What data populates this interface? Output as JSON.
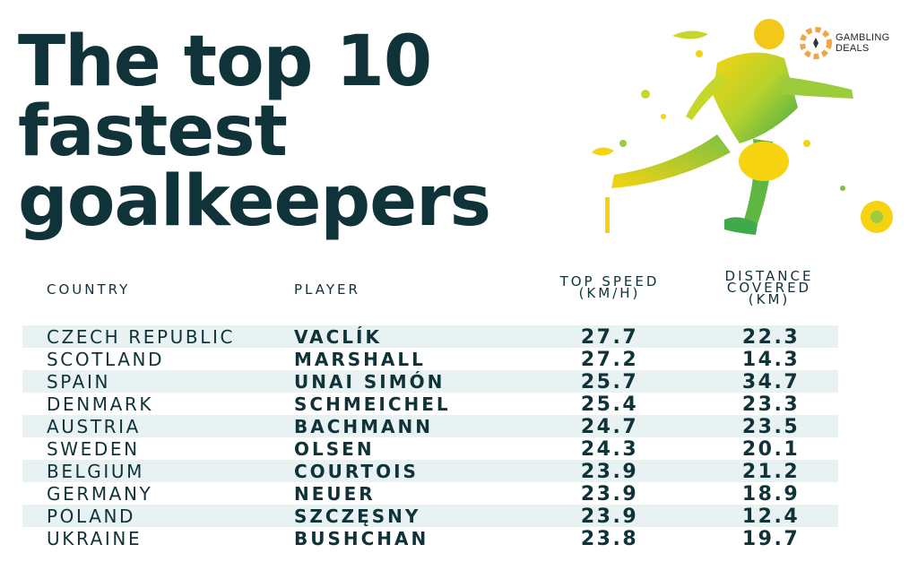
{
  "title": {
    "line1": "The top 10",
    "line2": "fastest",
    "line3": "goalkeepers"
  },
  "logo": {
    "line1": "GAMBLING",
    "line2": "DEALS",
    "icon": "chip-icon"
  },
  "illustration": {
    "icon": "footballer-splash-icon",
    "colors": [
      "#f5d311",
      "#c7d62b",
      "#7cc142",
      "#3faa4a"
    ]
  },
  "table": {
    "headers": {
      "country": "COUNTRY",
      "player": "PLAYER",
      "speed_line1": "TOP SPEED",
      "speed_line2": "(KM/H)",
      "dist_line1": "DISTANCE",
      "dist_line2": "COVERED",
      "dist_line3": "(KM)"
    },
    "rows": [
      {
        "country": "CZECH REPUBLIC",
        "player": "VACLÍK",
        "speed": "27.7",
        "distance": "22.3"
      },
      {
        "country": "SCOTLAND",
        "player": "MARSHALL",
        "speed": "27.2",
        "distance": "14.3"
      },
      {
        "country": "SPAIN",
        "player": "UNAI SIMÓN",
        "speed": "25.7",
        "distance": "34.7"
      },
      {
        "country": "DENMARK",
        "player": "SCHMEICHEL",
        "speed": "25.4",
        "distance": "23.3"
      },
      {
        "country": "AUSTRIA",
        "player": "BACHMANN",
        "speed": "24.7",
        "distance": "23.5"
      },
      {
        "country": "SWEDEN",
        "player": "OLSEN",
        "speed": "24.3",
        "distance": "20.1"
      },
      {
        "country": "BELGIUM",
        "player": "COURTOIS",
        "speed": "23.9",
        "distance": "21.2"
      },
      {
        "country": "GERMANY",
        "player": "NEUER",
        "speed": "23.9",
        "distance": "18.9"
      },
      {
        "country": "POLAND",
        "player": "SZCZĘSNY",
        "speed": "23.9",
        "distance": "12.4"
      },
      {
        "country": "UKRAINE",
        "player": "BUSHCHAN",
        "speed": "23.8",
        "distance": "19.7"
      }
    ]
  },
  "colors": {
    "text": "#0f3338",
    "row_shade": "#e8f2f2",
    "logo_accent": "#f0a54a"
  }
}
